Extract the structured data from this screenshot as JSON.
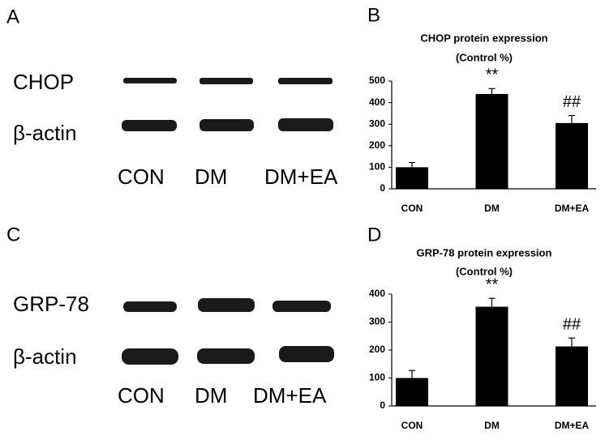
{
  "blots": [
    {
      "panel": "A",
      "rows": [
        "CHOP",
        "β-actin"
      ],
      "lanes": [
        "CON",
        "DM",
        "DM+EA"
      ]
    },
    {
      "panel": "C",
      "rows": [
        "GRP-78",
        "β-actin"
      ],
      "lanes": [
        "CON",
        "DM",
        "DM+EA"
      ]
    }
  ],
  "chart_data": [
    {
      "type": "bar",
      "panel": "B",
      "title": "CHOP protein expression",
      "subtitle": "(Control %)",
      "categories": [
        "CON",
        "DM",
        "DM+EA"
      ],
      "values": [
        100,
        440,
        305
      ],
      "errors": [
        22,
        25,
        35
      ],
      "significance": [
        null,
        "**",
        "##"
      ],
      "color": "#000000",
      "ylim": [
        0,
        500
      ],
      "yticks": [
        0,
        100,
        200,
        300,
        400,
        500
      ],
      "grid": false
    },
    {
      "type": "bar",
      "panel": "D",
      "title": "GRP-78  protein expression",
      "subtitle": "(Control %)",
      "categories": [
        "CON",
        "DM",
        "DM+EA"
      ],
      "values": [
        100,
        355,
        213
      ],
      "errors": [
        27,
        30,
        30
      ],
      "significance": [
        null,
        "**",
        "##"
      ],
      "color": "#000000",
      "ylim": [
        0,
        400
      ],
      "yticks": [
        0,
        100,
        200,
        300,
        400
      ],
      "grid": false
    }
  ]
}
